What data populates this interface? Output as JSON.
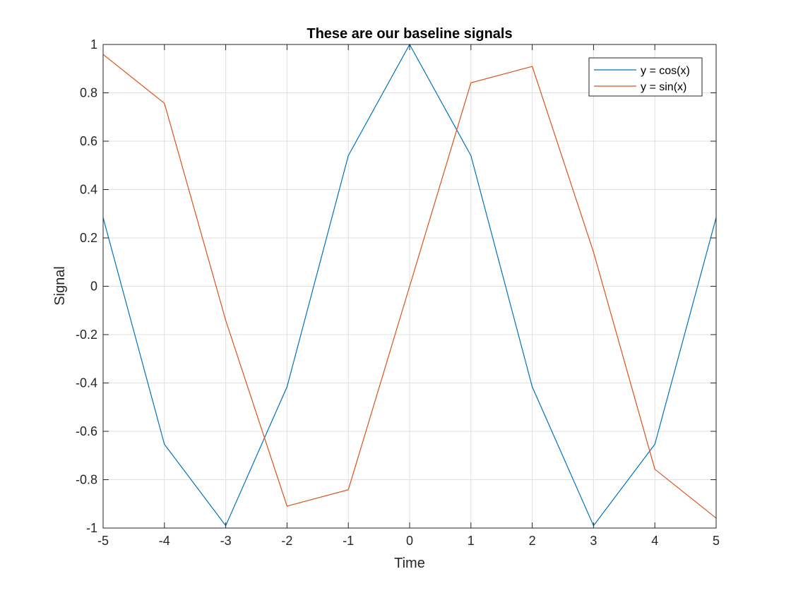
{
  "chart_data": {
    "type": "line",
    "title": "These are our baseline signals",
    "xlabel": "Time",
    "ylabel": "Signal",
    "xlim": [
      -5,
      5
    ],
    "ylim": [
      -1,
      1
    ],
    "grid": true,
    "legend_position": "top-right",
    "x": [
      -5,
      -4,
      -3,
      -2,
      -1,
      0,
      1,
      2,
      3,
      4,
      5
    ],
    "x_ticks": [
      "-5",
      "-4",
      "-3",
      "-2",
      "-1",
      "0",
      "1",
      "2",
      "3",
      "4",
      "5"
    ],
    "y_ticks": [
      "-1",
      "-0.8",
      "-0.6",
      "-0.4",
      "-0.2",
      "0",
      "0.2",
      "0.4",
      "0.6",
      "0.8",
      "1"
    ],
    "series": [
      {
        "name": "y = cos(x)",
        "color": "#0072BD",
        "values": [
          0.2837,
          -0.6536,
          -0.99,
          -0.4161,
          0.5403,
          1.0,
          0.5403,
          -0.4161,
          -0.99,
          -0.6536,
          0.2837
        ]
      },
      {
        "name": "y = sin(x)",
        "color": "#D95319",
        "values": [
          0.9589,
          0.7568,
          -0.1411,
          -0.9093,
          -0.8415,
          0.0,
          0.8415,
          0.9093,
          0.1411,
          -0.7568,
          -0.9589
        ]
      }
    ]
  }
}
